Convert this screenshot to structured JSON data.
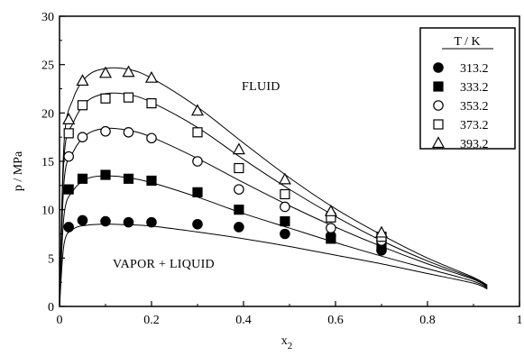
{
  "chart_data": {
    "type": "scatter",
    "xlabel_main": "x",
    "xlabel_sub": "2",
    "ylabel": "p / MPa",
    "xlim": [
      0,
      1
    ],
    "ylim": [
      0,
      30
    ],
    "xticks": [
      0,
      0.2,
      0.4,
      0.6,
      0.8,
      1
    ],
    "xtick_labels": [
      "0",
      "0.2",
      "0.4",
      "0.6",
      "0.8",
      "1"
    ],
    "yticks": [
      0,
      5,
      10,
      15,
      20,
      25,
      30
    ],
    "ytick_labels": [
      "0",
      "5",
      "10",
      "15",
      "20",
      "25",
      "30"
    ],
    "grid": false,
    "legend": {
      "title": "T / K",
      "placement": "top-right"
    },
    "annotations": [
      "FLUID",
      "VAPOR + LIQUID"
    ],
    "series": [
      {
        "name": "313.2",
        "marker": "filled-circle",
        "points": [
          [
            0.02,
            8.2
          ],
          [
            0.05,
            8.9
          ],
          [
            0.1,
            8.8
          ],
          [
            0.15,
            8.7
          ],
          [
            0.2,
            8.7
          ],
          [
            0.3,
            8.5
          ],
          [
            0.39,
            8.2
          ],
          [
            0.49,
            7.5
          ],
          [
            0.59,
            7.3
          ],
          [
            0.7,
            5.8
          ]
        ],
        "curve": [
          [
            0.0,
            0.0
          ],
          [
            0.01,
            6.5
          ],
          [
            0.03,
            8.0
          ],
          [
            0.06,
            8.4
          ],
          [
            0.1,
            8.5
          ],
          [
            0.15,
            8.45
          ],
          [
            0.2,
            8.3
          ],
          [
            0.3,
            7.7
          ],
          [
            0.4,
            7.0
          ],
          [
            0.5,
            6.2
          ],
          [
            0.6,
            5.3
          ],
          [
            0.7,
            4.4
          ],
          [
            0.8,
            3.4
          ],
          [
            0.9,
            2.4
          ],
          [
            0.93,
            1.8
          ]
        ]
      },
      {
        "name": "333.2",
        "marker": "filled-square",
        "points": [
          [
            0.02,
            12.1
          ],
          [
            0.05,
            13.2
          ],
          [
            0.1,
            13.6
          ],
          [
            0.15,
            13.2
          ],
          [
            0.2,
            13.0
          ],
          [
            0.3,
            11.8
          ],
          [
            0.39,
            10.0
          ],
          [
            0.49,
            8.8
          ],
          [
            0.59,
            7.0
          ],
          [
            0.7,
            6.3
          ]
        ],
        "curve": [
          [
            0.0,
            0.0
          ],
          [
            0.01,
            9.5
          ],
          [
            0.03,
            12.0
          ],
          [
            0.06,
            13.2
          ],
          [
            0.1,
            13.5
          ],
          [
            0.15,
            13.3
          ],
          [
            0.2,
            12.8
          ],
          [
            0.3,
            11.3
          ],
          [
            0.4,
            9.6
          ],
          [
            0.5,
            8.1
          ],
          [
            0.6,
            6.6
          ],
          [
            0.7,
            5.2
          ],
          [
            0.8,
            3.9
          ],
          [
            0.9,
            2.6
          ],
          [
            0.93,
            1.9
          ]
        ]
      },
      {
        "name": "353.2",
        "marker": "open-circle",
        "points": [
          [
            0.02,
            15.5
          ],
          [
            0.05,
            17.5
          ],
          [
            0.1,
            18.1
          ],
          [
            0.15,
            18.0
          ],
          [
            0.2,
            17.4
          ],
          [
            0.3,
            15.0
          ],
          [
            0.39,
            12.1
          ],
          [
            0.49,
            10.3
          ],
          [
            0.59,
            8.1
          ],
          [
            0.7,
            6.8
          ]
        ],
        "curve": [
          [
            0.0,
            0.0
          ],
          [
            0.01,
            13.0
          ],
          [
            0.03,
            16.0
          ],
          [
            0.06,
            17.8
          ],
          [
            0.1,
            18.4
          ],
          [
            0.15,
            18.2
          ],
          [
            0.2,
            17.5
          ],
          [
            0.3,
            15.3
          ],
          [
            0.4,
            12.8
          ],
          [
            0.5,
            10.4
          ],
          [
            0.6,
            8.2
          ],
          [
            0.7,
            6.2
          ],
          [
            0.8,
            4.4
          ],
          [
            0.9,
            2.8
          ],
          [
            0.93,
            2.0
          ]
        ]
      },
      {
        "name": "373.2",
        "marker": "open-square",
        "points": [
          [
            0.02,
            17.9
          ],
          [
            0.05,
            20.8
          ],
          [
            0.1,
            21.5
          ],
          [
            0.15,
            21.6
          ],
          [
            0.2,
            21.0
          ],
          [
            0.3,
            18.0
          ],
          [
            0.39,
            14.3
          ],
          [
            0.49,
            11.6
          ],
          [
            0.59,
            9.2
          ],
          [
            0.7,
            7.2
          ]
        ],
        "curve": [
          [
            0.0,
            0.0
          ],
          [
            0.01,
            15.5
          ],
          [
            0.03,
            19.0
          ],
          [
            0.06,
            21.2
          ],
          [
            0.1,
            22.0
          ],
          [
            0.15,
            21.9
          ],
          [
            0.2,
            21.1
          ],
          [
            0.3,
            18.5
          ],
          [
            0.4,
            15.2
          ],
          [
            0.5,
            12.1
          ],
          [
            0.6,
            9.3
          ],
          [
            0.7,
            6.8
          ],
          [
            0.8,
            4.7
          ],
          [
            0.9,
            2.9
          ],
          [
            0.93,
            2.1
          ]
        ]
      },
      {
        "name": "393.2",
        "marker": "open-triangle",
        "points": [
          [
            0.02,
            19.3
          ],
          [
            0.05,
            23.3
          ],
          [
            0.1,
            24.1
          ],
          [
            0.15,
            24.2
          ],
          [
            0.2,
            23.6
          ],
          [
            0.3,
            20.2
          ],
          [
            0.39,
            16.2
          ],
          [
            0.49,
            13.1
          ],
          [
            0.59,
            9.8
          ],
          [
            0.7,
            7.6
          ]
        ],
        "curve": [
          [
            0.0,
            0.0
          ],
          [
            0.01,
            17.0
          ],
          [
            0.03,
            21.5
          ],
          [
            0.06,
            23.8
          ],
          [
            0.1,
            24.6
          ],
          [
            0.15,
            24.5
          ],
          [
            0.2,
            23.6
          ],
          [
            0.3,
            20.6
          ],
          [
            0.4,
            16.9
          ],
          [
            0.5,
            13.3
          ],
          [
            0.6,
            10.1
          ],
          [
            0.7,
            7.4
          ],
          [
            0.8,
            5.0
          ],
          [
            0.9,
            3.0
          ],
          [
            0.93,
            2.2
          ]
        ]
      }
    ]
  }
}
